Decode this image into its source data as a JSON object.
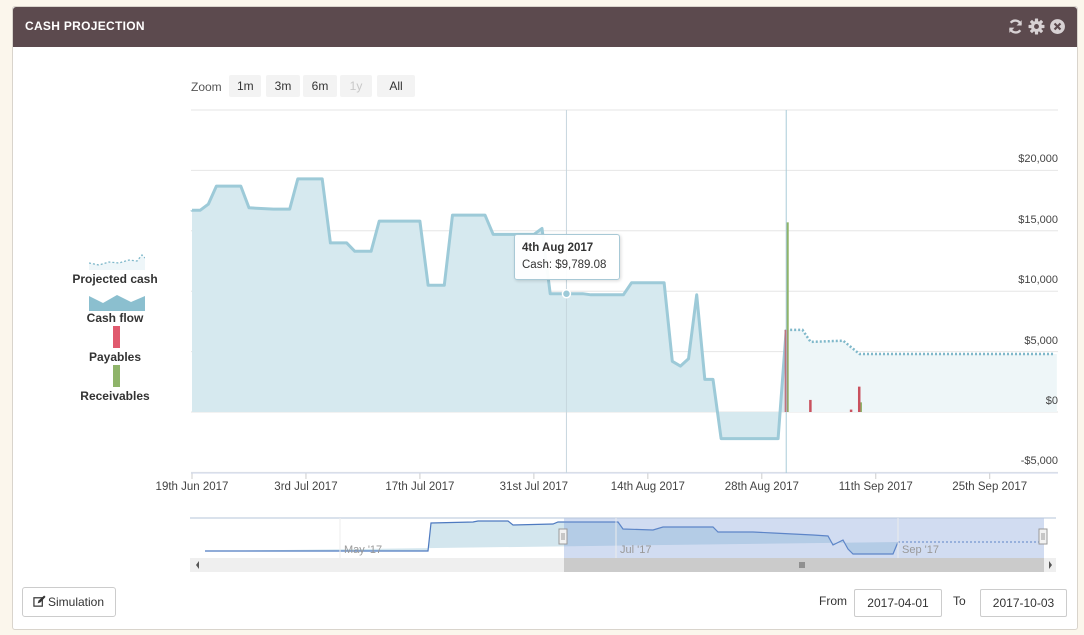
{
  "header": {
    "title": "CASH PROJECTION",
    "icons": [
      "refresh-icon",
      "gear-icon",
      "close-icon"
    ]
  },
  "zoom": {
    "label": "Zoom",
    "buttons": [
      {
        "label": "1m",
        "enabled": true
      },
      {
        "label": "3m",
        "enabled": true
      },
      {
        "label": "6m",
        "enabled": true
      },
      {
        "label": "1y",
        "enabled": false
      },
      {
        "label": "All",
        "enabled": true
      }
    ]
  },
  "legend": [
    {
      "label": "Projected cash",
      "icon": "projected-cash-icon"
    },
    {
      "label": "Cash flow",
      "icon": "cash-flow-icon"
    },
    {
      "label": "Payables",
      "icon": "payables-icon"
    },
    {
      "label": "Receivables",
      "icon": "receivables-icon"
    }
  ],
  "tooltip": {
    "date": "4th Aug 2017",
    "value": "Cash: $9,789.08"
  },
  "navigator": {
    "labels": [
      "May '17",
      "Jul '17",
      "Sep '17"
    ]
  },
  "footer": {
    "simulation_label": "Simulation",
    "from_label": "From",
    "from_value": "2017-04-01",
    "to_label": "To",
    "to_value": "2017-10-03"
  },
  "colors": {
    "header": "#5c4a4e",
    "cash": "#9dcad8",
    "payables": "#e05a6e",
    "receivables": "#8fb46a"
  },
  "chart_data": {
    "type": "area",
    "y_tick_labels": [
      "-$5,000",
      "$0",
      "$5,000",
      "$10,000",
      "$15,000",
      "$20,000"
    ],
    "y_ticks": [
      -5000,
      0,
      5000,
      10000,
      15000,
      20000
    ],
    "ylim": [
      -5000,
      25000
    ],
    "x_tick_labels": [
      "19th Jun 2017",
      "3rd Jul 2017",
      "17th Jul 2017",
      "31st Jul 2017",
      "14th Aug 2017",
      "28th Aug 2017",
      "11th Sep 2017",
      "25th Sep 2017"
    ],
    "x_ticks": [
      "2017-06-19",
      "2017-07-03",
      "2017-07-17",
      "2017-07-31",
      "2017-08-14",
      "2017-08-28",
      "2017-09-11",
      "2017-09-25"
    ],
    "xlim": [
      "2017-06-19",
      "2017-10-03"
    ],
    "series": [
      {
        "name": "Cash flow",
        "points": [
          [
            "2017-06-19",
            16700
          ],
          [
            "2017-06-20",
            16700
          ],
          [
            "2017-06-21",
            17200
          ],
          [
            "2017-06-22",
            18700
          ],
          [
            "2017-06-25",
            18700
          ],
          [
            "2017-06-26",
            16900
          ],
          [
            "2017-06-29",
            16800
          ],
          [
            "2017-07-01",
            16800
          ],
          [
            "2017-07-02",
            19300
          ],
          [
            "2017-07-05",
            19300
          ],
          [
            "2017-07-06",
            14000
          ],
          [
            "2017-07-08",
            14000
          ],
          [
            "2017-07-09",
            13300
          ],
          [
            "2017-07-11",
            13300
          ],
          [
            "2017-07-12",
            15800
          ],
          [
            "2017-07-17",
            15800
          ],
          [
            "2017-07-18",
            10500
          ],
          [
            "2017-07-20",
            10500
          ],
          [
            "2017-07-21",
            16300
          ],
          [
            "2017-07-25",
            16300
          ],
          [
            "2017-07-26",
            14700
          ],
          [
            "2017-07-31",
            14700
          ],
          [
            "2017-08-01",
            15200
          ],
          [
            "2017-08-02",
            9789
          ],
          [
            "2017-08-06",
            9789
          ],
          [
            "2017-08-07",
            9700
          ],
          [
            "2017-08-11",
            9700
          ],
          [
            "2017-08-12",
            10700
          ],
          [
            "2017-08-16",
            10700
          ],
          [
            "2017-08-17",
            4200
          ],
          [
            "2017-08-18",
            3800
          ],
          [
            "2017-08-19",
            4400
          ],
          [
            "2017-08-20",
            9700
          ],
          [
            "2017-08-21",
            2700
          ],
          [
            "2017-08-22",
            2700
          ],
          [
            "2017-08-23",
            -2200
          ],
          [
            "2017-08-30",
            -2200
          ],
          [
            "2017-08-31",
            6800
          ]
        ]
      },
      {
        "name": "Projected cash",
        "points": [
          [
            "2017-08-31",
            6800
          ],
          [
            "2017-09-02",
            6800
          ],
          [
            "2017-09-03",
            5800
          ],
          [
            "2017-09-07",
            5900
          ],
          [
            "2017-09-09",
            4800
          ],
          [
            "2017-10-03",
            4800
          ]
        ]
      },
      {
        "name": "Payables",
        "type": "bar",
        "points": [
          [
            "2017-08-31",
            6800
          ],
          [
            "2017-09-03",
            1000
          ],
          [
            "2017-09-08",
            200
          ],
          [
            "2017-09-09",
            2100
          ]
        ]
      },
      {
        "name": "Receivables",
        "type": "bar",
        "points": [
          [
            "2017-08-31",
            15700
          ],
          [
            "2017-09-09",
            800
          ]
        ]
      }
    ]
  }
}
